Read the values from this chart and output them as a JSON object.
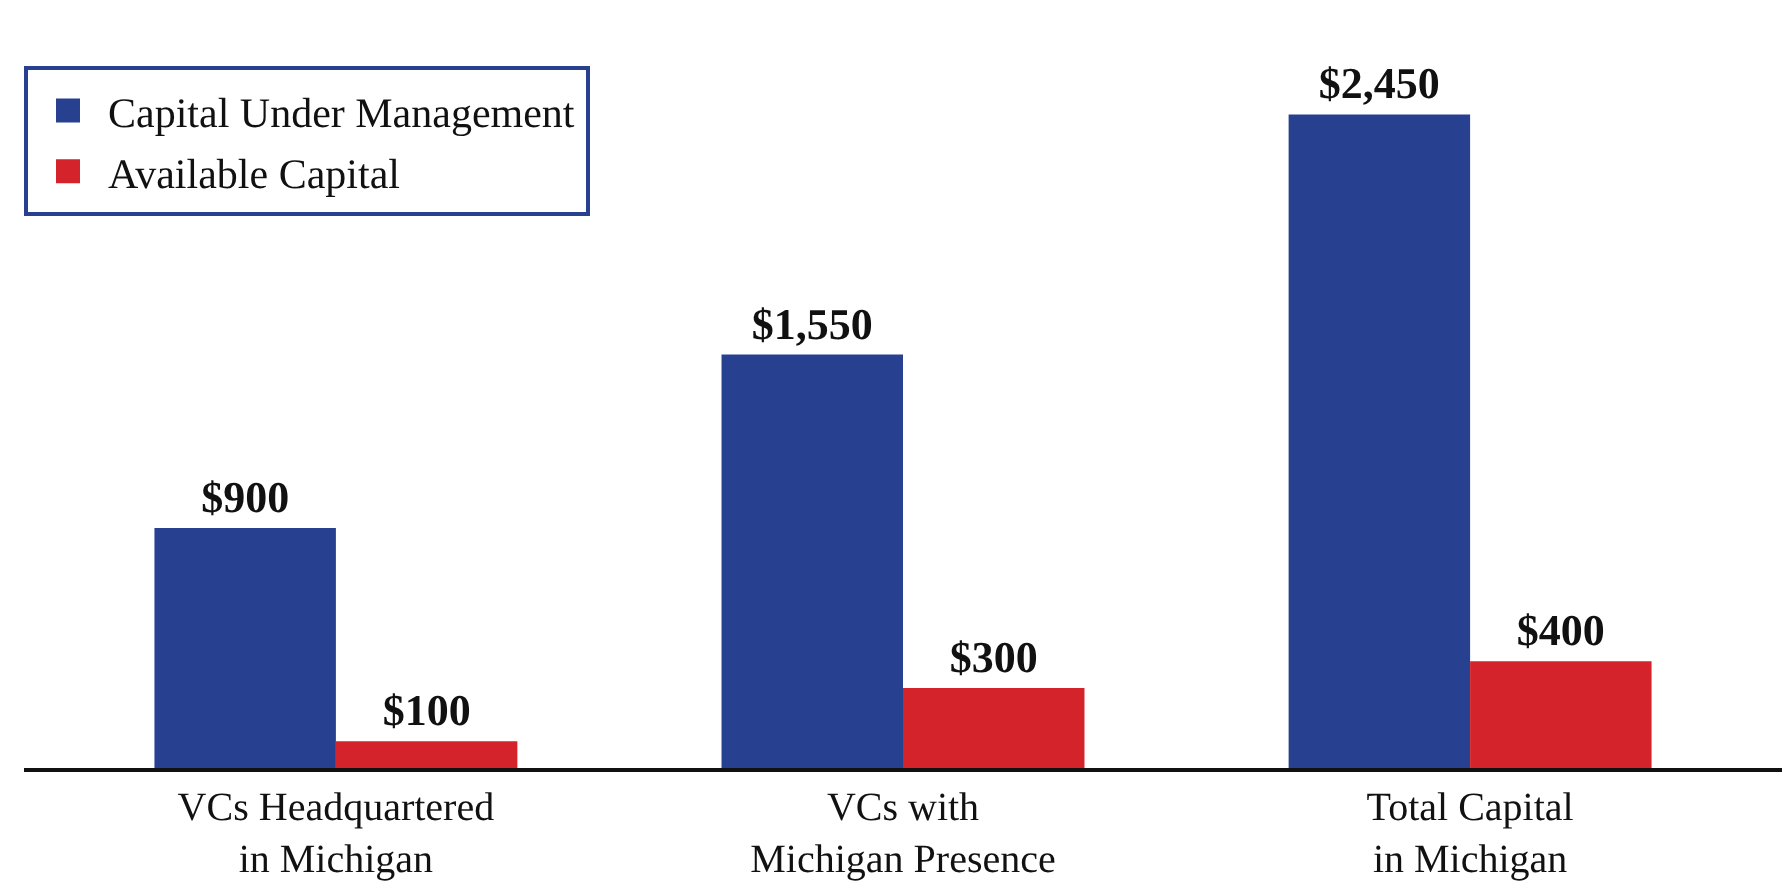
{
  "chart_data": {
    "type": "bar",
    "categories": [
      "VCs Headquartered\nin Michigan",
      "VCs with\nMichigan Presence",
      "Total Capital\nin Michigan"
    ],
    "series": [
      {
        "name": "Capital Under Management",
        "color": "#27408f",
        "values": [
          900,
          1550,
          2450
        ],
        "value_labels": [
          "$900",
          "$1,550",
          "$2,450"
        ]
      },
      {
        "name": "Available Capital",
        "color": "#d4232b",
        "values": [
          100,
          300,
          400
        ],
        "value_labels": [
          "$100",
          "$300",
          "$400"
        ]
      }
    ],
    "legend": "top left",
    "tick_labels": "x"
  }
}
